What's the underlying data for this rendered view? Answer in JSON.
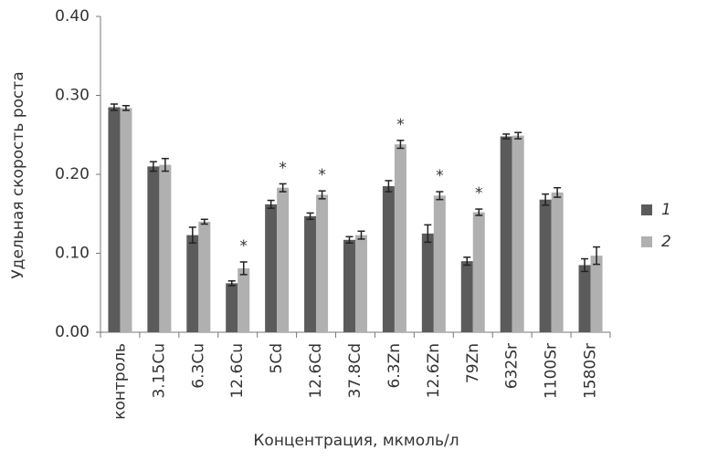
{
  "chart_data": {
    "type": "bar",
    "x_label": "Концентрация, мкмоль/л",
    "y_label": "Удельная скорость роста",
    "categories": [
      "контроль",
      "3.15Cu",
      "6.3Cu",
      "12.6Cu",
      "5Cd",
      "12.6Cd",
      "37.8Cd",
      "6.3Zn",
      "12.6Zn",
      "79Zn",
      "632Sr",
      "1100Sr",
      "1580Sr"
    ],
    "series": [
      {
        "name": "1",
        "color": "#5b5b5b",
        "values": [
          0.285,
          0.21,
          0.123,
          0.062,
          0.162,
          0.147,
          0.117,
          0.185,
          0.125,
          0.09,
          0.248,
          0.168,
          0.085
        ],
        "errors": [
          0.004,
          0.006,
          0.01,
          0.003,
          0.005,
          0.004,
          0.004,
          0.007,
          0.011,
          0.005,
          0.003,
          0.007,
          0.008
        ]
      },
      {
        "name": "2",
        "color": "#b0b0b0",
        "values": [
          0.284,
          0.212,
          0.14,
          0.081,
          0.183,
          0.174,
          0.123,
          0.238,
          0.173,
          0.152,
          0.249,
          0.177,
          0.097
        ],
        "errors": [
          0.003,
          0.008,
          0.003,
          0.008,
          0.005,
          0.005,
          0.005,
          0.005,
          0.005,
          0.004,
          0.004,
          0.006,
          0.011
        ]
      }
    ],
    "annotations": [
      {
        "text": "*",
        "series": "2",
        "category": "12.6Cu"
      },
      {
        "text": "*",
        "series": "2",
        "category": "5Cd"
      },
      {
        "text": "*",
        "series": "2",
        "category": "12.6Cd"
      },
      {
        "text": "*",
        "series": "2",
        "category": "6.3Zn"
      },
      {
        "text": "*",
        "series": "2",
        "category": "12.6Zn"
      },
      {
        "text": "*",
        "series": "2",
        "category": "79Zn"
      }
    ],
    "ylim": [
      0,
      0.4
    ],
    "yticks": [
      {
        "value": 0,
        "label": "0.00"
      },
      {
        "value": 0.1,
        "label": "0.10"
      },
      {
        "value": 0.2,
        "label": "0.20"
      },
      {
        "value": 0.3,
        "label": "0.30"
      },
      {
        "value": 0.4,
        "label": "0.40"
      }
    ],
    "grid": false,
    "legend": "right"
  }
}
